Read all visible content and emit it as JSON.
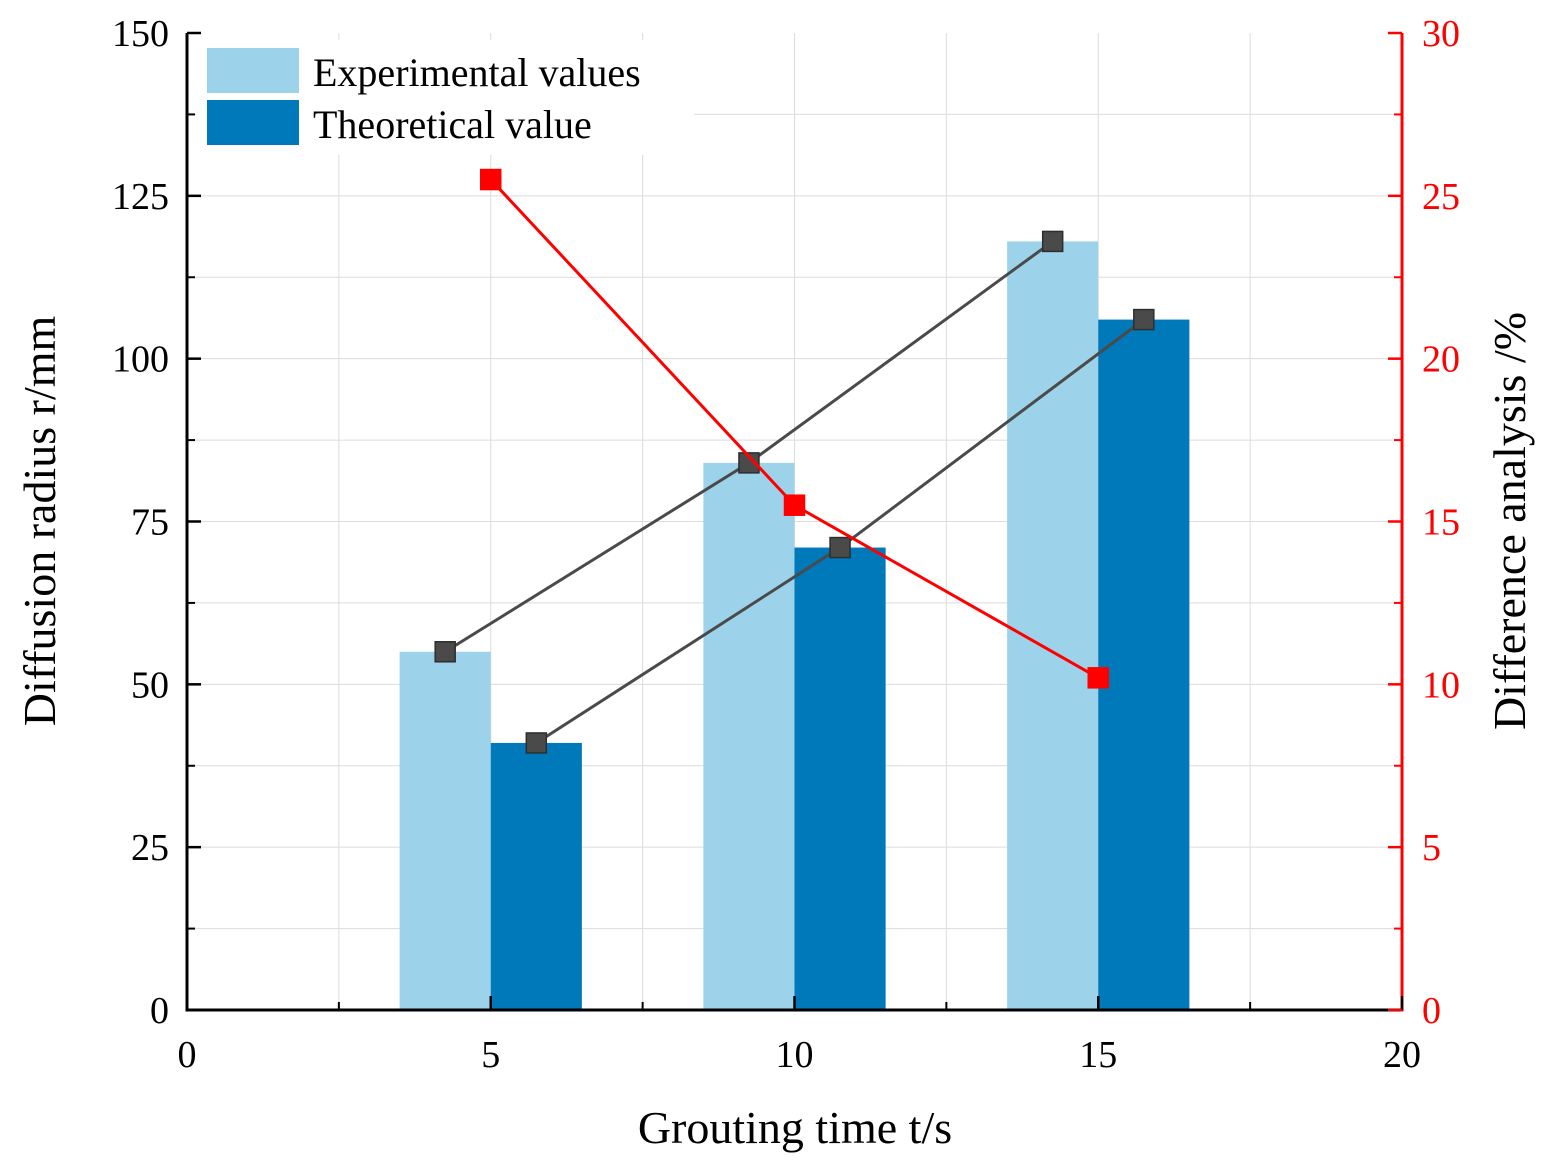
{
  "chart_data": {
    "type": "bar",
    "title": "",
    "xlabel": "Grouting time t/s",
    "ylabel": "Diffusion radius  r/mm",
    "y2label": "Difference analysis /%",
    "xlim": [
      0,
      20
    ],
    "ylim": [
      0,
      150
    ],
    "y2lim": [
      0,
      30
    ],
    "x_ticks": [
      0,
      5,
      10,
      15,
      20
    ],
    "y_ticks": [
      0,
      25,
      50,
      75,
      100,
      125,
      150
    ],
    "y2_ticks": [
      0,
      5,
      10,
      15,
      20,
      25,
      30
    ],
    "grid": true,
    "legend_position": "top-left",
    "categories": [
      5,
      10,
      15
    ],
    "series": [
      {
        "name": "Experimental values",
        "kind": "bar",
        "axis": "left",
        "color": "#9dd3ea",
        "values": [
          55,
          84,
          118
        ]
      },
      {
        "name": "Theoretical value",
        "kind": "bar",
        "axis": "left",
        "color": "#0079bb",
        "values": [
          41,
          71,
          106
        ]
      },
      {
        "name": "Experimental values trend",
        "kind": "line",
        "axis": "left",
        "color": "#4a4a4a",
        "values": [
          55,
          84,
          118
        ]
      },
      {
        "name": "Theoretical value trend",
        "kind": "line",
        "axis": "left",
        "color": "#4a4a4a",
        "values": [
          41,
          71,
          106
        ]
      },
      {
        "name": "Difference analysis",
        "kind": "line",
        "axis": "right",
        "color": "#ff0000",
        "values": [
          25.5,
          15.5,
          10.2
        ]
      }
    ]
  }
}
